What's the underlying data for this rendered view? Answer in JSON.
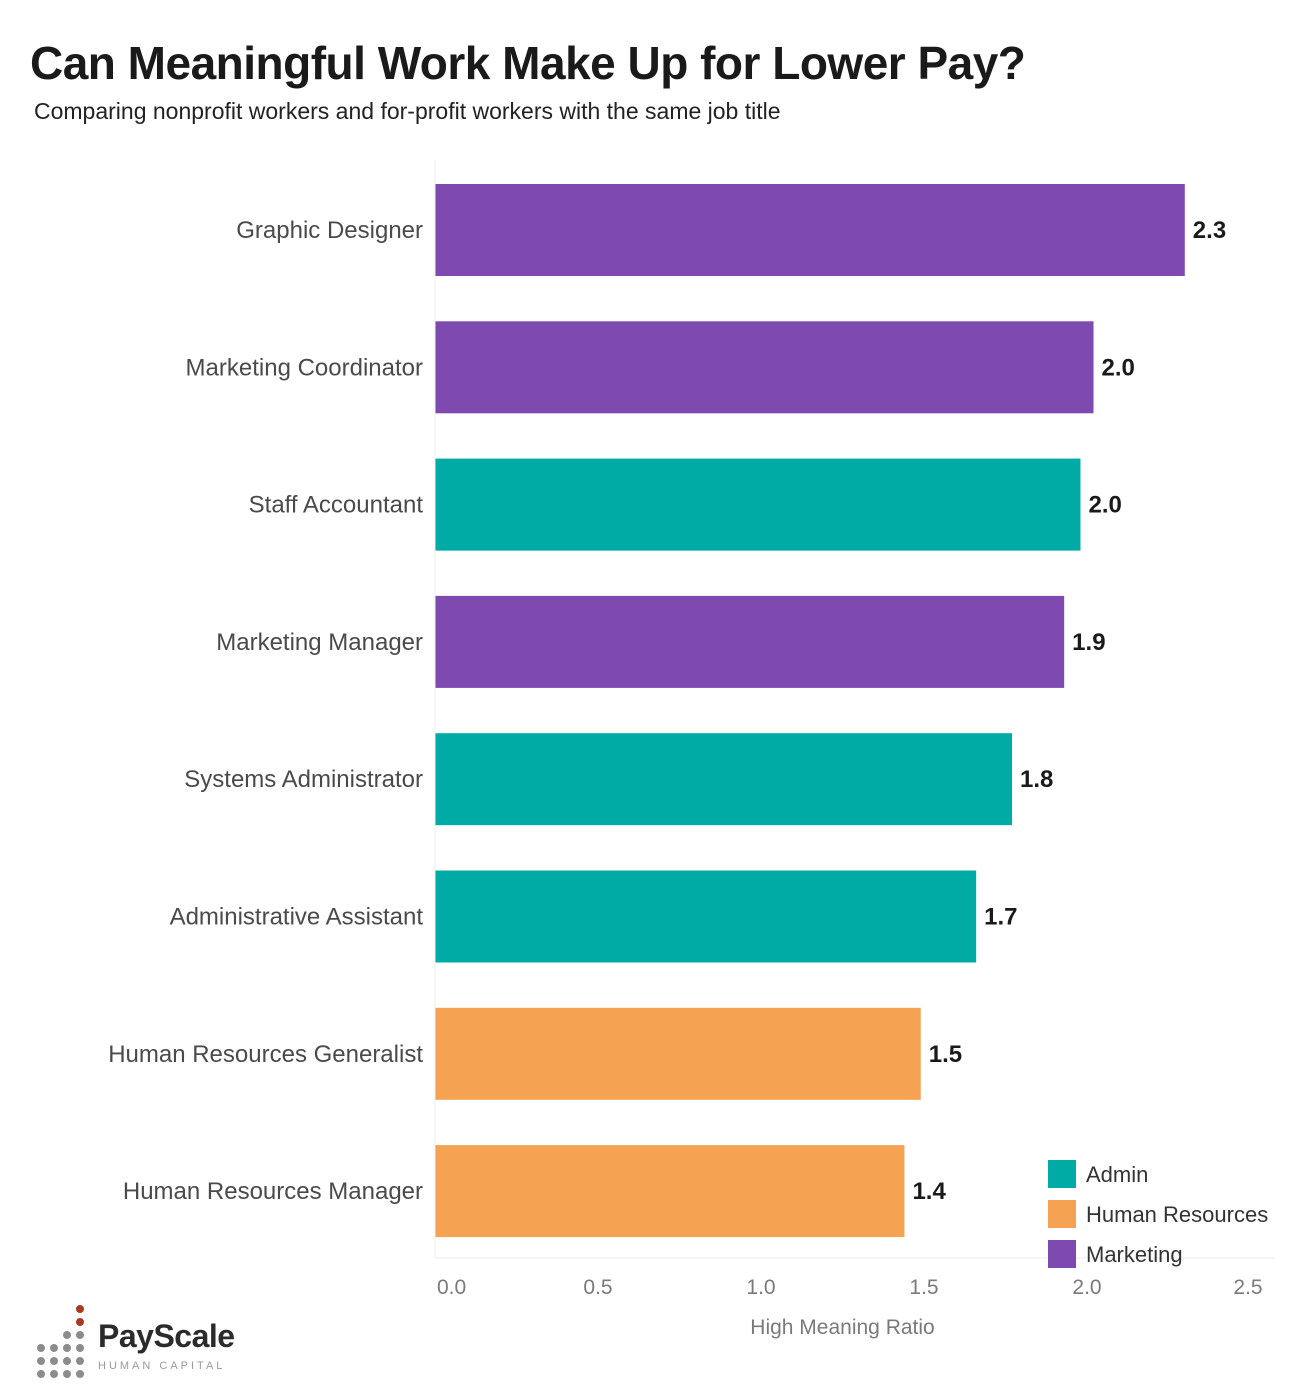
{
  "header": {
    "title": "Can Meaningful Work Make Up for Lower Pay?",
    "subtitle": "Comparing nonprofit workers and for-profit workers with the same job title"
  },
  "logo": {
    "name": "PayScale",
    "tagline": "HUMAN CAPITAL"
  },
  "colors": {
    "Admin": "#00aba5",
    "Human Resources": "#f5a253",
    "Marketing": "#7f4aaf"
  },
  "chart_data": {
    "type": "bar",
    "orientation": "horizontal",
    "title": "Can Meaningful Work Make Up for Lower Pay?",
    "subtitle": "Comparing nonprofit workers and for-profit workers with the same job title",
    "xlabel": "High Meaning Ratio",
    "ylabel": "",
    "xlim": [
      0,
      2.5
    ],
    "xticks": [
      "0.0",
      "0.5",
      "1.0",
      "1.5",
      "2.0",
      "2.5"
    ],
    "categories": [
      "Graphic Designer",
      "Marketing Coordinator",
      "Staff Accountant",
      "Marketing Manager",
      "Systems Administrator",
      "Administrative Assistant",
      "Human Resources Generalist",
      "Human Resources Manager"
    ],
    "values": [
      2.3,
      2.02,
      1.98,
      1.93,
      1.77,
      1.66,
      1.49,
      1.44
    ],
    "value_labels": [
      "2.3",
      "2.0",
      "2.0",
      "1.9",
      "1.8",
      "1.7",
      "1.5",
      "1.4"
    ],
    "groups": [
      "Marketing",
      "Marketing",
      "Admin",
      "Marketing",
      "Admin",
      "Admin",
      "Human Resources",
      "Human Resources"
    ],
    "legend": {
      "position": "bottom-right",
      "entries": [
        "Admin",
        "Human Resources",
        "Marketing"
      ]
    },
    "grid": false
  }
}
